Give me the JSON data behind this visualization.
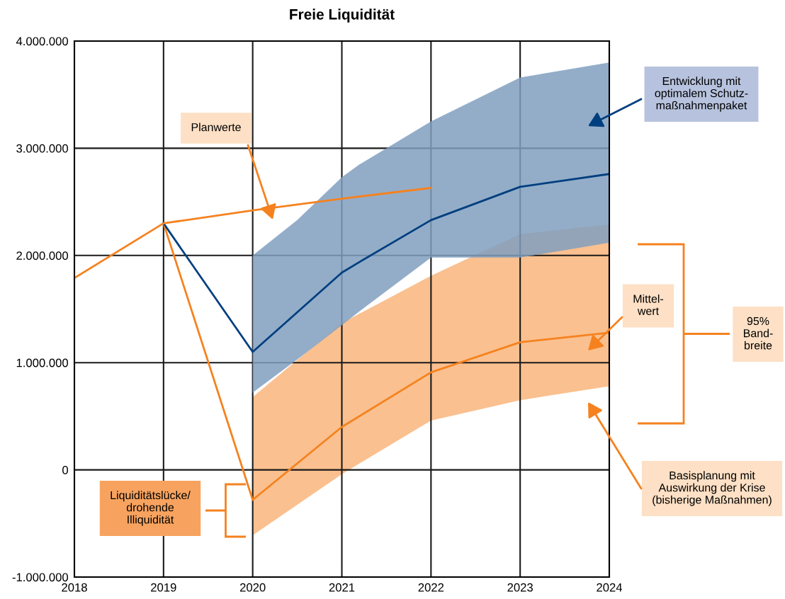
{
  "chart_data": {
    "type": "line",
    "title": "Freie Liquidität",
    "series": [
      {
        "color": "#f5821f",
        "x": [
          2018,
          2019,
          2020,
          2021,
          2022
        ],
        "values": [
          1790000,
          2300000,
          2420000,
          2530000,
          2630000
        ]
      },
      {
        "color": "#003f7f",
        "x": [
          2019,
          2020,
          2020.5,
          2021,
          2021.2,
          2022,
          2023,
          2024
        ],
        "values": [
          2300000,
          1100000,
          1470000,
          1840000,
          1940000,
          2330000,
          2640000,
          2760000
        ],
        "lower": [
          null,
          720000,
          1030000,
          1350000,
          1480000,
          1980000,
          1980000,
          2120000
        ],
        "upper": [
          null,
          2000000,
          2330000,
          2730000,
          2850000,
          3250000,
          3660000,
          3800000
        ]
      },
      {
        "color": "#f5821f",
        "x": [
          2019,
          2020,
          2021,
          2022,
          2023,
          2024
        ],
        "values": [
          2300000,
          -280000,
          400000,
          910000,
          1190000,
          1280000
        ],
        "lower": [
          null,
          -610000,
          -40000,
          460000,
          650000,
          780000
        ],
        "upper": [
          null,
          680000,
          1370000,
          1810000,
          2200000,
          2290000
        ]
      }
    ],
    "xlim": [
      2018,
      2024
    ],
    "xticks": [
      2018,
      2019,
      2020,
      2021,
      2022,
      2023,
      2024
    ],
    "ylim": [
      -1000000,
      4000000
    ],
    "yticks": [
      {
        "value": -1000000,
        "label": "-1.000.000"
      },
      {
        "value": 0,
        "label": "0"
      },
      {
        "value": 1000000,
        "label": "1.000.000"
      },
      {
        "value": 2000000,
        "label": "2.000.000"
      },
      {
        "value": 3000000,
        "label": "3.000.000"
      },
      {
        "value": 4000000,
        "label": "4.000.000"
      }
    ],
    "grid": true,
    "legend": false,
    "marker": "none",
    "line_style": "solid",
    "annotations": [
      "Planwerte",
      "Entwicklung mit\noptimalem Schutz-\nmaßnahmenpaket",
      "Mittel-\nwert",
      "95%\nBand-\nbreite",
      "Basisplanung mit\nAuswirkung der Krise\n(bisherige Maßnahmen)",
      "Liquiditätslücke/\ndrohende\nIlliquidität"
    ]
  }
}
